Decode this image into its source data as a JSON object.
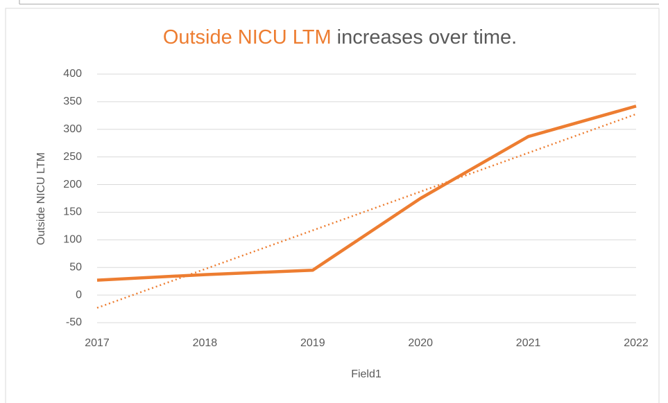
{
  "chart_data": {
    "type": "line",
    "title_highlight": "Outside NICU LTM",
    "title_rest": "increases over time.",
    "title_highlight_color": "#ed7d31",
    "x_label": "Field1",
    "y_label": "Outside NICU LTM",
    "x": [
      2017,
      2018,
      2019,
      2020,
      2021,
      2022
    ],
    "series": [
      {
        "name": "Outside NICU LTM",
        "color": "#ed7d31",
        "values": [
          27,
          37,
          45,
          175,
          287,
          342
        ]
      }
    ],
    "trendline": {
      "type": "linear",
      "style": "dotted"
    },
    "xlim": [
      2017,
      2022
    ],
    "xticks": [
      2017,
      2018,
      2019,
      2020,
      2021,
      2022
    ],
    "ylim": [
      -50,
      400
    ],
    "yticks": [
      -50,
      0,
      50,
      100,
      150,
      200,
      250,
      300,
      350,
      400
    ],
    "grid": true
  }
}
